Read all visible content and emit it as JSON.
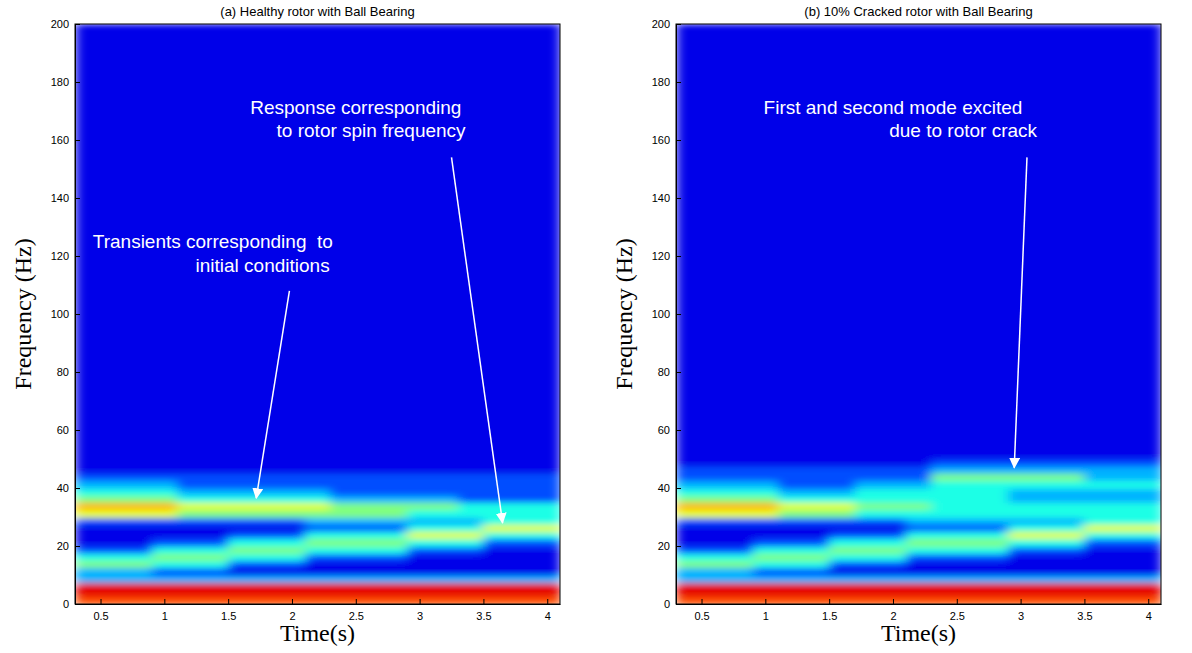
{
  "chart_data": [
    {
      "type": "heatmap",
      "title": "(a) Healthy rotor with Ball Bearing",
      "x_label": "Time(s)",
      "y_label": "Frequency (Hz)",
      "xlim": [
        0.3,
        4.1
      ],
      "xticks": [
        0.5,
        1,
        1.5,
        2,
        2.5,
        3,
        3.5,
        4
      ],
      "ylim": [
        0,
        200
      ],
      "yticks": [
        0,
        20,
        40,
        60,
        80,
        100,
        120,
        140,
        160,
        180,
        200
      ],
      "x_edges": [
        0.3,
        0.5,
        0.7,
        0.9,
        1.1,
        1.3,
        1.5,
        1.7,
        1.9,
        2.1,
        2.3,
        2.5,
        2.7,
        2.9,
        3.1,
        3.3,
        3.5,
        3.7,
        3.9,
        4.1
      ],
      "y_edges": [
        0,
        2.5,
        5,
        7.5,
        10,
        12.5,
        15,
        17.5,
        20,
        22.5,
        25,
        27.5,
        30,
        32.5,
        35,
        37.5,
        40,
        42.5,
        45,
        47.5,
        50,
        52.5,
        55,
        57.5,
        60,
        200
      ],
      "zlim": [
        0,
        10
      ],
      "z": [
        [
          8,
          8,
          8,
          8,
          8,
          8,
          8,
          8,
          8,
          8,
          8,
          8,
          8,
          8,
          8,
          8,
          8,
          8,
          8
        ],
        [
          9,
          9,
          9,
          9,
          9,
          9,
          9,
          9,
          9,
          9,
          9,
          9,
          9,
          9,
          9,
          9,
          9,
          9,
          9
        ],
        [
          9,
          9,
          9,
          9,
          9,
          9,
          9,
          9,
          9,
          9,
          9,
          9,
          9,
          9,
          9,
          9,
          9,
          9,
          9
        ],
        [
          3,
          3,
          3,
          3,
          3,
          3,
          3,
          3,
          3,
          3,
          3,
          3,
          3,
          3,
          3,
          3,
          3,
          3,
          3
        ],
        [
          3,
          3,
          3,
          2,
          2,
          2,
          1,
          1,
          1,
          1,
          1,
          1,
          1,
          1,
          1,
          1,
          1,
          1,
          1
        ],
        [
          5,
          5,
          5,
          4,
          4,
          4,
          2,
          2,
          2,
          1,
          1,
          1,
          1,
          1,
          1,
          1,
          1,
          1,
          1
        ],
        [
          4,
          4,
          4,
          5,
          5,
          5,
          4,
          4,
          4,
          2,
          2,
          2,
          2,
          1,
          1,
          1,
          1,
          1,
          1
        ],
        [
          2,
          2,
          2,
          4,
          4,
          4,
          5,
          5,
          5,
          4,
          4,
          4,
          4,
          2,
          2,
          2,
          1,
          1,
          1
        ],
        [
          1,
          1,
          1,
          2,
          2,
          2,
          4,
          4,
          4,
          5,
          5,
          5,
          5,
          4,
          4,
          4,
          2,
          2,
          2
        ],
        [
          1,
          1,
          1,
          1,
          1,
          1,
          2,
          2,
          2,
          4,
          4,
          4,
          4,
          6,
          6,
          6,
          4,
          4,
          4
        ],
        [
          1,
          1,
          1,
          1,
          1,
          1,
          1,
          1,
          1,
          2,
          2,
          2,
          2,
          4,
          4,
          4,
          6,
          6,
          6
        ],
        [
          2,
          2,
          2,
          2,
          2,
          2,
          2,
          2,
          2,
          3,
          3,
          3,
          3,
          3,
          3,
          3,
          4,
          4,
          4
        ],
        [
          6,
          6,
          6,
          6,
          5,
          5,
          5,
          5,
          5,
          5,
          5,
          5,
          5,
          4,
          4,
          4,
          4,
          4,
          4
        ],
        [
          7,
          7,
          7,
          7,
          6,
          6,
          6,
          6,
          6,
          6,
          5,
          5,
          5,
          5,
          5,
          4,
          4,
          4,
          4
        ],
        [
          5,
          5,
          5,
          5,
          4,
          4,
          4,
          4,
          4,
          4,
          3,
          3,
          3,
          3,
          3,
          2,
          2,
          2,
          2
        ],
        [
          4,
          4,
          4,
          4,
          3,
          3,
          3,
          3,
          3,
          3,
          2,
          2,
          2,
          2,
          2,
          2,
          2,
          2,
          2
        ],
        [
          3,
          3,
          3,
          3,
          2,
          2,
          2,
          2,
          2,
          2,
          2,
          2,
          2,
          2,
          2,
          2,
          2,
          2,
          2
        ],
        [
          2,
          2,
          2,
          2,
          2,
          2,
          2,
          2,
          2,
          2,
          2,
          2,
          2,
          2,
          2,
          2,
          2,
          2,
          2
        ],
        [
          1,
          1,
          1,
          1,
          1,
          1,
          1,
          1,
          1,
          1,
          1,
          1,
          1,
          1,
          1,
          1,
          1,
          1,
          1
        ],
        [
          1,
          1,
          1,
          1,
          1,
          1,
          1,
          1,
          1,
          1,
          1,
          1,
          1,
          1,
          1,
          1,
          1,
          1,
          1
        ],
        [
          1,
          1,
          1,
          1,
          1,
          1,
          1,
          1,
          1,
          1,
          1,
          1,
          1,
          1,
          1,
          1,
          1,
          1,
          1
        ],
        [
          1,
          1,
          1,
          1,
          1,
          1,
          1,
          1,
          1,
          1,
          1,
          1,
          1,
          1,
          1,
          1,
          1,
          1,
          1
        ],
        [
          1,
          1,
          1,
          1,
          1,
          1,
          1,
          1,
          1,
          1,
          1,
          1,
          1,
          1,
          1,
          1,
          1,
          1,
          1
        ],
        [
          1,
          1,
          1,
          1,
          1,
          1,
          1,
          1,
          1,
          1,
          1,
          1,
          1,
          1,
          1,
          1,
          1,
          1,
          1
        ],
        [
          1,
          1,
          1,
          1,
          1,
          1,
          1,
          1,
          1,
          1,
          1,
          1,
          1,
          1,
          1,
          1,
          1,
          1,
          1
        ]
      ],
      "annotations": [
        {
          "lines": [
            {
              "text": "Response corresponding",
              "x": 2.5,
              "y": 169
            },
            {
              "text": "to rotor spin frequency",
              "x": 2.62,
              "y": 161
            }
          ],
          "arrow": {
            "from": [
              3.25,
              154
            ],
            "to": [
              3.65,
              28
            ]
          }
        },
        {
          "lines": [
            {
              "text": "Transients corresponding  to",
              "x": 1.38,
              "y": 122.7
            },
            {
              "text": "initial conditions",
              "x": 1.77,
              "y": 114.5
            }
          ],
          "arrow": {
            "from": [
              1.98,
              108
            ],
            "to": [
              1.72,
              36.5
            ]
          }
        }
      ]
    },
    {
      "type": "heatmap",
      "title": "(b) 10% Cracked rotor with Ball Bearing",
      "x_label": "Time(s)",
      "y_label": "Frequency (Hz)",
      "xlim": [
        0.3,
        4.1
      ],
      "xticks": [
        0.5,
        1,
        1.5,
        2,
        2.5,
        3,
        3.5,
        4
      ],
      "ylim": [
        0,
        200
      ],
      "yticks": [
        0,
        20,
        40,
        60,
        80,
        100,
        120,
        140,
        160,
        180,
        200
      ],
      "x_edges": [
        0.3,
        0.5,
        0.7,
        0.9,
        1.1,
        1.3,
        1.5,
        1.7,
        1.9,
        2.1,
        2.3,
        2.5,
        2.7,
        2.9,
        3.1,
        3.3,
        3.5,
        3.7,
        3.9,
        4.1
      ],
      "y_edges": [
        0,
        2.5,
        5,
        7.5,
        10,
        12.5,
        15,
        17.5,
        20,
        22.5,
        25,
        27.5,
        30,
        32.5,
        35,
        37.5,
        40,
        42.5,
        45,
        47.5,
        50,
        52.5,
        55,
        57.5,
        60,
        200
      ],
      "zlim": [
        0,
        10
      ],
      "z": [
        [
          8,
          8,
          8,
          8,
          8,
          8,
          8,
          8,
          8,
          8,
          8,
          8,
          8,
          8,
          8,
          8,
          8,
          8,
          8
        ],
        [
          9,
          9,
          9,
          9,
          9,
          9,
          9,
          9,
          9,
          9,
          9,
          9,
          9,
          9,
          9,
          9,
          9,
          9,
          9
        ],
        [
          9,
          9,
          9,
          9,
          9,
          9,
          9,
          9,
          9,
          9,
          9,
          9,
          9,
          9,
          9,
          9,
          9,
          9,
          9
        ],
        [
          3,
          3,
          3,
          3,
          3,
          3,
          3,
          3,
          3,
          3,
          3,
          3,
          3,
          3,
          3,
          3,
          3,
          3,
          3
        ],
        [
          3,
          3,
          3,
          2,
          2,
          2,
          1,
          1,
          1,
          1,
          1,
          1,
          1,
          1,
          1,
          1,
          1,
          1,
          1
        ],
        [
          5,
          5,
          5,
          4,
          4,
          4,
          2,
          2,
          2,
          1,
          1,
          1,
          1,
          1,
          1,
          1,
          1,
          1,
          1
        ],
        [
          4,
          4,
          4,
          5,
          5,
          5,
          4,
          4,
          4,
          2,
          2,
          2,
          2,
          1,
          1,
          1,
          1,
          1,
          1
        ],
        [
          2,
          2,
          2,
          4,
          4,
          4,
          5,
          5,
          5,
          4,
          4,
          4,
          4,
          2,
          2,
          2,
          1,
          1,
          1
        ],
        [
          1,
          1,
          1,
          2,
          2,
          2,
          4,
          4,
          4,
          5,
          5,
          5,
          5,
          4,
          4,
          4,
          2,
          2,
          2
        ],
        [
          1,
          1,
          1,
          1,
          1,
          1,
          2,
          2,
          2,
          4,
          4,
          4,
          4,
          6,
          6,
          6,
          4,
          4,
          4
        ],
        [
          1,
          1,
          1,
          1,
          1,
          1,
          1,
          1,
          1,
          2,
          2,
          2,
          2,
          4,
          4,
          4,
          6,
          6,
          6
        ],
        [
          2,
          2,
          2,
          2,
          2,
          2,
          2,
          2,
          2,
          3,
          3,
          3,
          3,
          3,
          3,
          3,
          4,
          4,
          4
        ],
        [
          6,
          6,
          6,
          6,
          5,
          5,
          5,
          4,
          4,
          4,
          4,
          4,
          4,
          4,
          4,
          4,
          4,
          4,
          4
        ],
        [
          7,
          7,
          7,
          7,
          6,
          6,
          6,
          5,
          5,
          5,
          4,
          4,
          4,
          4,
          4,
          4,
          4,
          4,
          4
        ],
        [
          5,
          5,
          5,
          5,
          4,
          4,
          4,
          4,
          4,
          4,
          4,
          4,
          4,
          3,
          3,
          3,
          3,
          3,
          3
        ],
        [
          4,
          4,
          4,
          4,
          3,
          3,
          3,
          4,
          4,
          4,
          4,
          4,
          4,
          3,
          3,
          3,
          3,
          3,
          3
        ],
        [
          3,
          3,
          3,
          3,
          2,
          2,
          2,
          3,
          3,
          3,
          4,
          4,
          4,
          4,
          4,
          4,
          4,
          4,
          4
        ],
        [
          2,
          2,
          2,
          2,
          2,
          2,
          2,
          2,
          2,
          2,
          5,
          5,
          5,
          5,
          5,
          5,
          3,
          3,
          3
        ],
        [
          2,
          2,
          2,
          2,
          2,
          2,
          2,
          2,
          2,
          2,
          3,
          3,
          3,
          3,
          3,
          3,
          3,
          3,
          3
        ],
        [
          1,
          1,
          1,
          1,
          1,
          1,
          1,
          1,
          1,
          1,
          2,
          2,
          2,
          2,
          2,
          2,
          2,
          2,
          2
        ],
        [
          1,
          1,
          1,
          1,
          1,
          1,
          1,
          1,
          1,
          1,
          1,
          1,
          1,
          1,
          1,
          1,
          1,
          1,
          1
        ],
        [
          1,
          1,
          1,
          1,
          1,
          1,
          1,
          1,
          1,
          1,
          1,
          1,
          1,
          1,
          1,
          1,
          1,
          1,
          1
        ],
        [
          1,
          1,
          1,
          1,
          1,
          1,
          1,
          1,
          1,
          1,
          1,
          1,
          1,
          1,
          1,
          1,
          1,
          1,
          1
        ],
        [
          1,
          1,
          1,
          1,
          1,
          1,
          1,
          1,
          1,
          1,
          1,
          1,
          1,
          1,
          1,
          1,
          1,
          1,
          1
        ],
        [
          1,
          1,
          1,
          1,
          1,
          1,
          1,
          1,
          1,
          1,
          1,
          1,
          1,
          1,
          1,
          1,
          1,
          1,
          1
        ]
      ],
      "annotations": [
        {
          "lines": [
            {
              "text": "First and second mode excited",
              "x": 2.0,
              "y": 169
            },
            {
              "text": "due to rotor crack",
              "x": 2.55,
              "y": 161
            }
          ],
          "arrow": {
            "from": [
              3.05,
              154
            ],
            "to": [
              2.95,
              47
            ]
          }
        }
      ]
    }
  ]
}
